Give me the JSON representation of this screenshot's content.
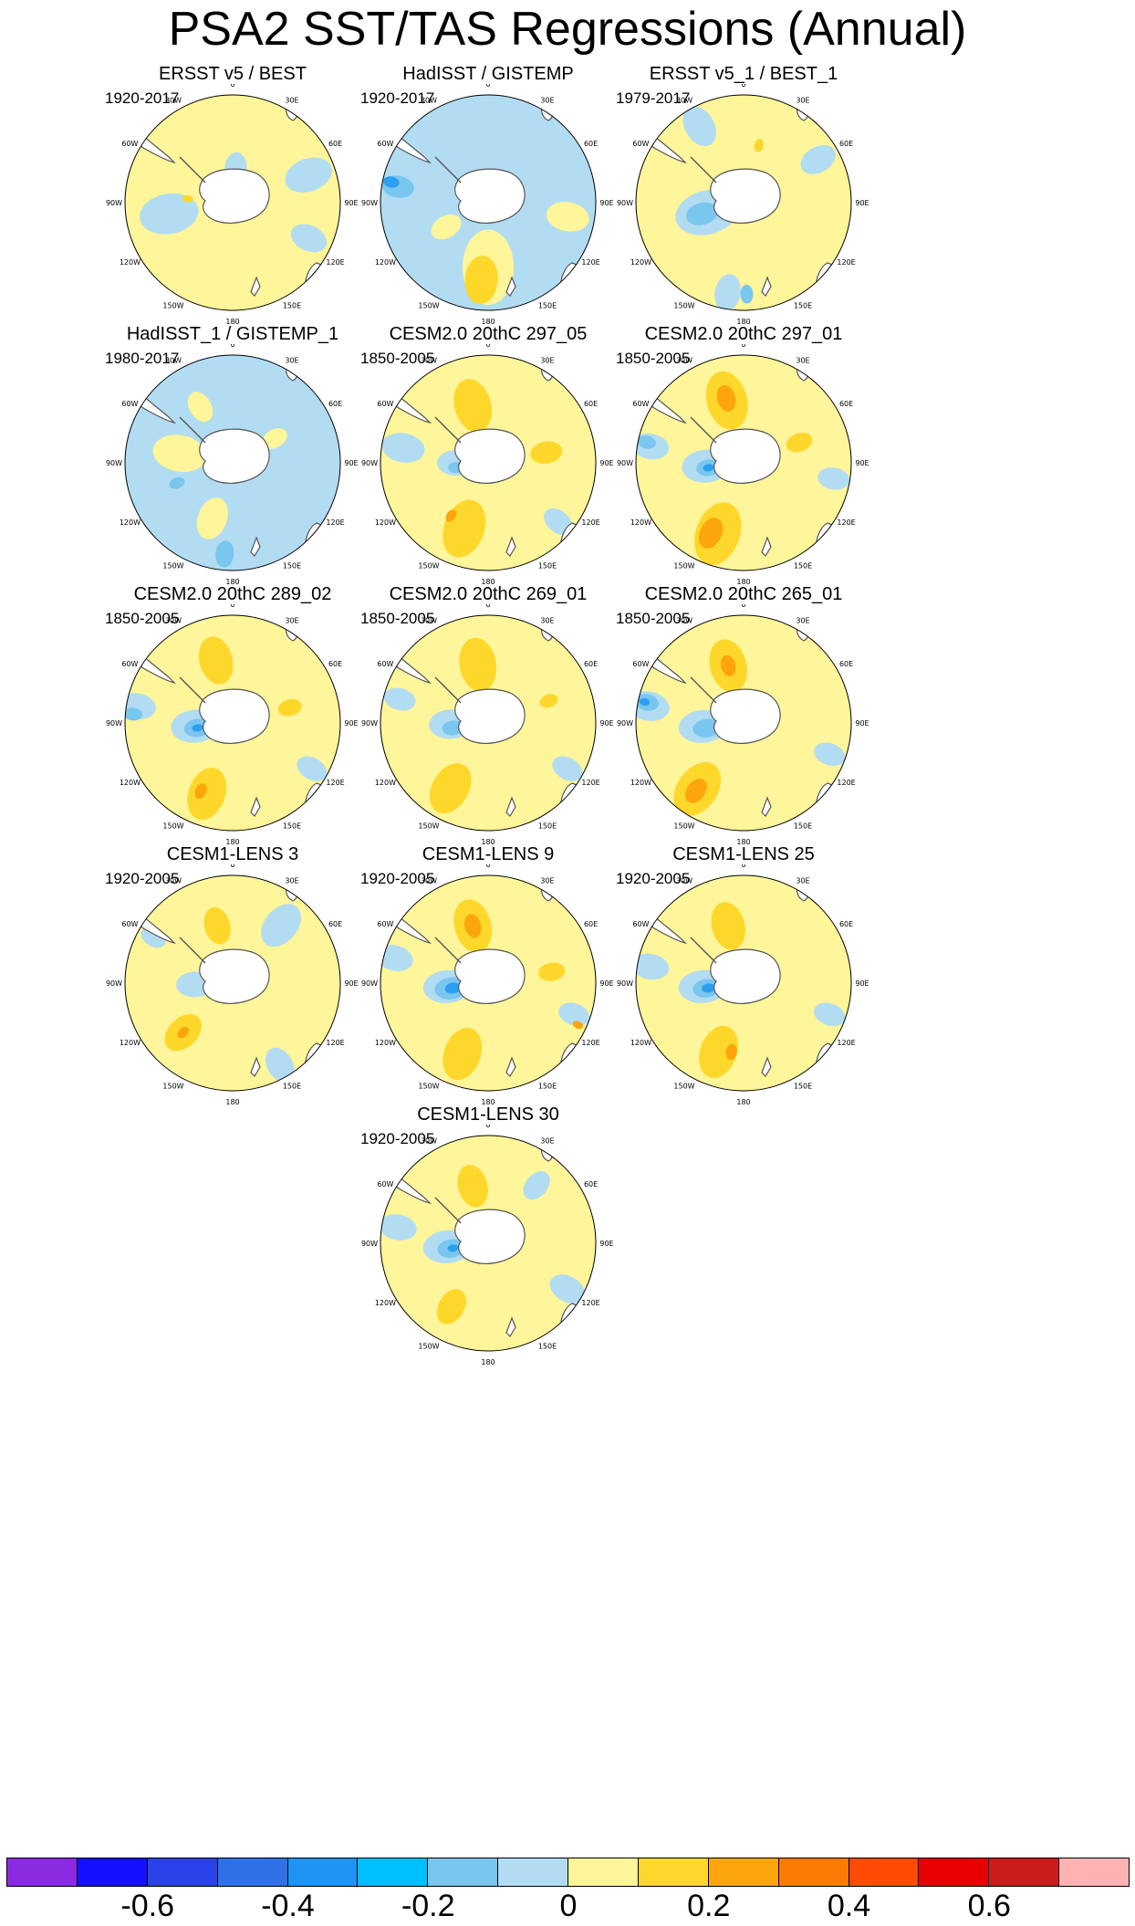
{
  "title": "PSA2 SST/TAS Regressions (Annual)",
  "map_labels": [
    "0",
    "30E",
    "60E",
    "90E",
    "120E",
    "150E",
    "180",
    "150W",
    "120W",
    "90W",
    "60W",
    "30W"
  ],
  "colors": {
    "neg_light": "#b2dcf2",
    "neg_mid": "#79c6ef",
    "neg_strong": "#2ba0f0",
    "neg_deep": "#2a60e8",
    "pos_light": "#fff59a",
    "pos_mid": "#fed72b",
    "pos_strong": "#fca60a",
    "pos_deep": "#fc7a05",
    "land": "#ffffff",
    "coast": "#555555"
  },
  "chart_data": {
    "type": "polar-map-panels",
    "title": "PSA2 SST/TAS Regressions (Annual)",
    "projection": "south-polar-stereographic",
    "panels": [
      {
        "title": "ERSST v5 / BEST",
        "period": "1920-2017",
        "base": "pos_light",
        "blobs": [
          [
            "neg_light",
            0.32,
            5,
            0.12
          ],
          [
            "neg_light",
            0.75,
            70,
            0.18
          ],
          [
            "neg_light",
            0.6,
            260,
            0.22
          ],
          [
            "neg_light",
            0.78,
            115,
            0.14
          ],
          [
            "pos_mid",
            0.42,
            275,
            0.04
          ]
        ]
      },
      {
        "title": "HadISST / GISTEMP",
        "period": "1920-2017",
        "base": "neg_light",
        "blobs": [
          [
            "pos_light",
            0.6,
            180,
            0.28
          ],
          [
            "pos_mid",
            0.72,
            185,
            0.18
          ],
          [
            "pos_light",
            0.75,
            100,
            0.16
          ],
          [
            "neg_mid",
            0.85,
            280,
            0.12
          ],
          [
            "neg_strong",
            0.92,
            282,
            0.06
          ],
          [
            "pos_light",
            0.45,
            240,
            0.12
          ]
        ]
      },
      {
        "title": "ERSST v5_1 / BEST_1",
        "period": "1979-2017",
        "base": "pos_light",
        "blobs": [
          [
            "neg_light",
            0.35,
            255,
            0.24
          ],
          [
            "neg_mid",
            0.4,
            255,
            0.12
          ],
          [
            "neg_light",
            0.85,
            190,
            0.14
          ],
          [
            "neg_mid",
            0.85,
            178,
            0.07
          ],
          [
            "neg_light",
            0.82,
            330,
            0.16
          ],
          [
            "neg_light",
            0.8,
            60,
            0.14
          ],
          [
            "pos_mid",
            0.55,
            15,
            0.05
          ]
        ]
      },
      {
        "title": "HadISST_1 / GISTEMP_1",
        "period": "1980-2017",
        "base": "neg_light",
        "blobs": [
          [
            "pos_light",
            0.5,
            280,
            0.2
          ],
          [
            "pos_light",
            0.55,
            200,
            0.16
          ],
          [
            "pos_light",
            0.6,
            330,
            0.12
          ],
          [
            "neg_mid",
            0.85,
            185,
            0.1
          ],
          [
            "pos_light",
            0.45,
            60,
            0.1
          ],
          [
            "neg_mid",
            0.55,
            250,
            0.06
          ]
        ]
      },
      {
        "title": "CESM2.0 20thC 297_05",
        "period": "1850-2005",
        "base": "pos_light",
        "blobs": [
          [
            "pos_mid",
            0.55,
            345,
            0.2
          ],
          [
            "pos_mid",
            0.65,
            200,
            0.22
          ],
          [
            "pos_mid",
            0.55,
            80,
            0.12
          ],
          [
            "neg_light",
            0.3,
            270,
            0.14
          ],
          [
            "neg_mid",
            0.3,
            262,
            0.06
          ],
          [
            "neg_light",
            0.85,
            130,
            0.12
          ],
          [
            "neg_light",
            0.8,
            280,
            0.16
          ],
          [
            "pos_strong",
            0.6,
            215,
            0.05
          ]
        ]
      },
      {
        "title": "CESM2.0 20thC 297_01",
        "period": "1850-2005",
        "base": "pos_light",
        "blobs": [
          [
            "pos_mid",
            0.6,
            345,
            0.22
          ],
          [
            "pos_strong",
            0.62,
            345,
            0.1
          ],
          [
            "pos_mid",
            0.7,
            200,
            0.24
          ],
          [
            "pos_strong",
            0.72,
            205,
            0.12
          ],
          [
            "neg_light",
            0.35,
            265,
            0.18
          ],
          [
            "neg_mid",
            0.33,
            262,
            0.09
          ],
          [
            "neg_strong",
            0.33,
            262,
            0.04
          ],
          [
            "neg_light",
            0.88,
            280,
            0.14
          ],
          [
            "neg_mid",
            0.92,
            282,
            0.07
          ],
          [
            "neg_light",
            0.85,
            100,
            0.12
          ],
          [
            "pos_mid",
            0.55,
            70,
            0.1
          ]
        ]
      },
      {
        "title": "CESM2.0 20thC 289_02",
        "period": "1850-2005",
        "base": "pos_light",
        "blobs": [
          [
            "pos_mid",
            0.6,
            345,
            0.18
          ],
          [
            "pos_mid",
            0.7,
            200,
            0.2
          ],
          [
            "pos_strong",
            0.7,
            205,
            0.06
          ],
          [
            "neg_light",
            0.35,
            265,
            0.18
          ],
          [
            "neg_mid",
            0.33,
            262,
            0.1
          ],
          [
            "neg_strong",
            0.33,
            262,
            0.04
          ],
          [
            "neg_light",
            0.9,
            280,
            0.14
          ],
          [
            "neg_mid",
            0.93,
            275,
            0.07
          ],
          [
            "pos_mid",
            0.55,
            75,
            0.09
          ],
          [
            "neg_light",
            0.85,
            120,
            0.12
          ]
        ]
      },
      {
        "title": "CESM2.0 20thC 269_01",
        "period": "1850-2005",
        "base": "pos_light",
        "blobs": [
          [
            "pos_mid",
            0.55,
            350,
            0.2
          ],
          [
            "pos_mid",
            0.7,
            210,
            0.2
          ],
          [
            "neg_light",
            0.35,
            268,
            0.16
          ],
          [
            "neg_mid",
            0.33,
            262,
            0.08
          ],
          [
            "neg_light",
            0.85,
            285,
            0.12
          ],
          [
            "neg_light",
            0.85,
            120,
            0.12
          ],
          [
            "pos_mid",
            0.6,
            70,
            0.07
          ]
        ]
      },
      {
        "title": "CESM2.0 20thC 265_01",
        "period": "1850-2005",
        "base": "pos_light",
        "blobs": [
          [
            "pos_mid",
            0.55,
            345,
            0.2
          ],
          [
            "pos_strong",
            0.55,
            345,
            0.08
          ],
          [
            "pos_mid",
            0.75,
            215,
            0.22
          ],
          [
            "pos_strong",
            0.77,
            215,
            0.1
          ],
          [
            "neg_light",
            0.38,
            265,
            0.18
          ],
          [
            "neg_mid",
            0.35,
            262,
            0.1
          ],
          [
            "neg_light",
            0.9,
            280,
            0.16
          ],
          [
            "neg_mid",
            0.92,
            282,
            0.09
          ],
          [
            "neg_strong",
            0.94,
            282,
            0.04
          ],
          [
            "neg_light",
            0.85,
            110,
            0.12
          ]
        ]
      },
      {
        "title": "CESM1-LENS 3",
        "period": "1920-2005",
        "base": "pos_light",
        "blobs": [
          [
            "pos_mid",
            0.55,
            345,
            0.14
          ],
          [
            "pos_mid",
            0.65,
            225,
            0.16
          ],
          [
            "pos_strong",
            0.65,
            225,
            0.05
          ],
          [
            "neg_light",
            0.35,
            268,
            0.14
          ],
          [
            "neg_light",
            0.7,
            40,
            0.18
          ],
          [
            "neg_light",
            0.88,
            150,
            0.14
          ],
          [
            "neg_light",
            0.85,
            300,
            0.1
          ]
        ]
      },
      {
        "title": "CESM1-LENS 9",
        "period": "1920-2005",
        "base": "pos_light",
        "blobs": [
          [
            "pos_mid",
            0.55,
            345,
            0.2
          ],
          [
            "pos_strong",
            0.55,
            345,
            0.09
          ],
          [
            "pos_mid",
            0.7,
            200,
            0.2
          ],
          [
            "pos_mid",
            0.6,
            80,
            0.1
          ],
          [
            "neg_light",
            0.38,
            265,
            0.18
          ],
          [
            "neg_mid",
            0.35,
            262,
            0.12
          ],
          [
            "neg_strong",
            0.33,
            262,
            0.06
          ],
          [
            "neg_light",
            0.9,
            285,
            0.14
          ],
          [
            "neg_light",
            0.85,
            110,
            0.12
          ],
          [
            "pos_strong",
            0.92,
            115,
            0.04
          ]
        ]
      },
      {
        "title": "CESM1-LENS 25",
        "period": "1920-2005",
        "base": "pos_light",
        "blobs": [
          [
            "pos_mid",
            0.55,
            345,
            0.18
          ],
          [
            "pos_mid",
            0.68,
            200,
            0.2
          ],
          [
            "pos_strong",
            0.65,
            190,
            0.06
          ],
          [
            "neg_light",
            0.38,
            265,
            0.18
          ],
          [
            "neg_mid",
            0.35,
            262,
            0.1
          ],
          [
            "neg_strong",
            0.33,
            262,
            0.05
          ],
          [
            "neg_light",
            0.88,
            280,
            0.14
          ],
          [
            "neg_light",
            0.85,
            110,
            0.12
          ]
        ]
      },
      {
        "title": "CESM1-LENS 30",
        "period": "1920-2005",
        "base": "pos_light",
        "blobs": [
          [
            "pos_mid",
            0.55,
            345,
            0.16
          ],
          [
            "pos_mid",
            0.68,
            210,
            0.14
          ],
          [
            "neg_light",
            0.38,
            265,
            0.18
          ],
          [
            "neg_mid",
            0.35,
            262,
            0.1
          ],
          [
            "neg_strong",
            0.33,
            262,
            0.04
          ],
          [
            "neg_light",
            0.85,
            280,
            0.14
          ],
          [
            "neg_light",
            0.85,
            120,
            0.14
          ],
          [
            "neg_light",
            0.7,
            40,
            0.12
          ]
        ]
      }
    ],
    "colorbar": {
      "levels": [
        "-0.6",
        "-0.4",
        "-0.2",
        "0",
        "0.2",
        "0.4",
        "0.6"
      ],
      "level_values": [
        -0.6,
        -0.4,
        -0.2,
        0,
        0.2,
        0.4,
        0.6
      ],
      "range": [
        -0.8,
        0.8
      ],
      "colors": [
        "#8a2be2",
        "#1410ff",
        "#2a43e8",
        "#2f72e8",
        "#1f94f2",
        "#00bfff",
        "#79c6ef",
        "#b2dcf2",
        "#fff59a",
        "#fed72b",
        "#fca60a",
        "#fc7a05",
        "#fd4a04",
        "#e80000",
        "#cc1b1b",
        "#ffb2b2"
      ]
    }
  }
}
